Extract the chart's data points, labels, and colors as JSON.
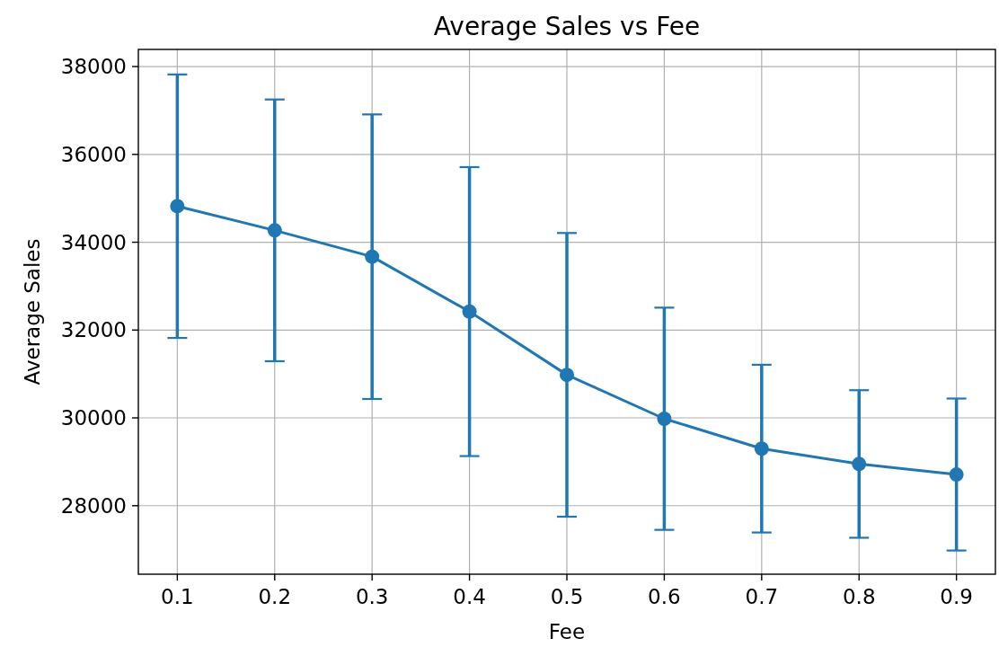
{
  "chart_data": {
    "type": "line",
    "title": "Average Sales vs Fee",
    "xlabel": "Fee",
    "ylabel": "Average Sales",
    "x": [
      0.1,
      0.2,
      0.3,
      0.4,
      0.5,
      0.6,
      0.7,
      0.8,
      0.9
    ],
    "values": [
      34820,
      34270,
      33670,
      32420,
      30980,
      29980,
      29300,
      28950,
      28710
    ],
    "errors": [
      3000,
      2980,
      3240,
      3290,
      3230,
      2530,
      1910,
      1680,
      1730
    ],
    "color": "#1f77b4",
    "marker": "circle",
    "line_style": "solid",
    "grid": true,
    "xlim": [
      0.06,
      0.94
    ],
    "ylim": [
      26440,
      38390
    ],
    "xticks": [
      0.1,
      0.2,
      0.3,
      0.4,
      0.5,
      0.6,
      0.7,
      0.8,
      0.9
    ],
    "yticks": [
      28000,
      30000,
      32000,
      34000,
      36000,
      38000
    ]
  }
}
